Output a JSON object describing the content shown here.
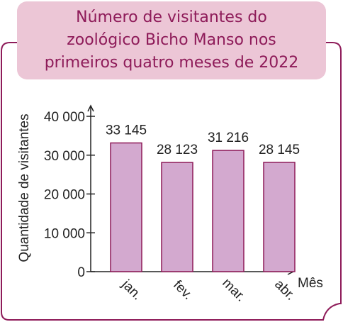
{
  "title_lines": [
    "Número de visitantes do",
    "zoológico Bicho Manso nos",
    "primeiros quatro meses de 2022"
  ],
  "colors": {
    "frame": "#8e1b59",
    "title_bg": "#ecc6d6",
    "title_text": "#8e1b59",
    "bar_fill": "#d3a9cf",
    "bar_stroke": "#8e1b59",
    "axis": "#222222"
  },
  "chart_data": {
    "type": "bar",
    "categories": [
      "jan.",
      "fev.",
      "mar.",
      "abr."
    ],
    "values": [
      33145,
      28123,
      31216,
      28145
    ],
    "value_labels": [
      "33 145",
      "28 123",
      "31 216",
      "28 145"
    ],
    "y_ticks": [
      0,
      10000,
      20000,
      30000,
      40000
    ],
    "y_tick_labels": [
      "0",
      "10 000",
      "20 000",
      "30 000",
      "40 000"
    ],
    "ylim": [
      0,
      40000
    ],
    "xlabel": "Mês",
    "ylabel": "Quantidade de visitantes",
    "grid": false,
    "legend": "none"
  }
}
